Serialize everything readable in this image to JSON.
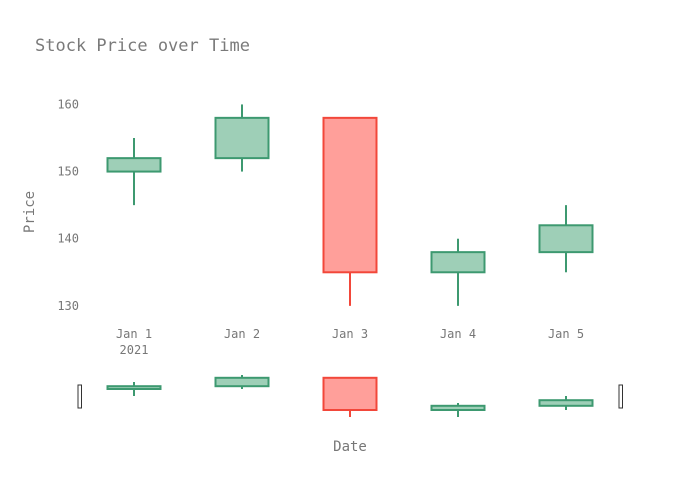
{
  "chart_data": {
    "type": "candlestick",
    "title": "Stock Price over Time",
    "xlabel": "Date",
    "ylabel": "Price",
    "x_year_label": "2021",
    "categories": [
      "Jan 1",
      "Jan 2",
      "Jan 3",
      "Jan 4",
      "Jan 5"
    ],
    "series": [
      {
        "open": [
          150,
          152,
          158,
          135,
          138
        ],
        "high": [
          155,
          160,
          158,
          140,
          145
        ],
        "low": [
          145,
          150,
          130,
          130,
          135
        ],
        "close": [
          152,
          158,
          135,
          138,
          142
        ]
      }
    ],
    "ylim": [
      127,
      162
    ],
    "yticks": [
      130,
      140,
      150,
      160
    ],
    "grid": false,
    "legend": "none",
    "range_slider": true,
    "colors": {
      "increasing_line": "#3d9970",
      "increasing_fill": "#9ecfb7",
      "decreasing_line": "#f2473a",
      "decreasing_fill": "#ff9f9a"
    }
  }
}
